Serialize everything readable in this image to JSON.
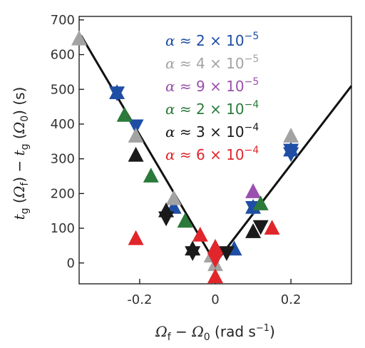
{
  "chart_data": {
    "type": "scatter",
    "xlabel": "Ω_f − Ω_0 (rad s⁻¹)",
    "ylabel": "t_g (Ω_f) − t_g (Ω_0) (s)",
    "xlim": [
      -0.36,
      0.36
    ],
    "ylim": [
      -60,
      710
    ],
    "x_ticks": [
      -0.2,
      0,
      0.2
    ],
    "x_tick_labels": [
      "-0.2",
      "0",
      "0.2"
    ],
    "y_ticks": [
      0,
      100,
      200,
      300,
      400,
      500,
      600,
      700
    ],
    "y_tick_labels": [
      "0",
      "100",
      "200",
      "300",
      "400",
      "500",
      "600",
      "700"
    ],
    "grid": false,
    "legend_position": "top-center",
    "fit_lines": [
      {
        "name": "left",
        "x": [
          -0.355,
          0.0
        ],
        "y": [
          655,
          0
        ],
        "color": "#111111"
      },
      {
        "name": "right",
        "x": [
          0.0,
          0.36
        ],
        "y": [
          0,
          510
        ],
        "color": "#111111"
      }
    ],
    "series": [
      {
        "name": "α ≈ 2 × 10⁻⁵",
        "alpha": "2",
        "exp": "−5",
        "color": "#1f4ea5",
        "points": [
          {
            "x": -0.26,
            "y": 490,
            "marker": "star"
          },
          {
            "x": -0.21,
            "y": 395,
            "marker": "down"
          },
          {
            "x": -0.11,
            "y": 160,
            "marker": "up"
          },
          {
            "x": 0.1,
            "y": 160,
            "marker": "star"
          },
          {
            "x": 0.2,
            "y": 325,
            "marker": "star"
          },
          {
            "x": 0.2,
            "y": 315,
            "marker": "down"
          },
          {
            "x": 0.05,
            "y": 40,
            "marker": "up"
          }
        ]
      },
      {
        "name": "α ≈ 4 × 10⁻⁵",
        "alpha": "4",
        "exp": "−5",
        "color": "#a3a3a3",
        "points": [
          {
            "x": -0.36,
            "y": 645,
            "marker": "up"
          },
          {
            "x": -0.21,
            "y": 365,
            "marker": "up"
          },
          {
            "x": -0.11,
            "y": 185,
            "marker": "up"
          },
          {
            "x": 0.2,
            "y": 365,
            "marker": "up"
          },
          {
            "x": 0.0,
            "y": -5,
            "marker": "up"
          },
          {
            "x": -0.01,
            "y": 20,
            "marker": "up"
          }
        ]
      },
      {
        "name": "α ≈ 9 × 10⁻⁵",
        "alpha": "9",
        "exp": "−5",
        "color": "#9b4fae",
        "points": [
          {
            "x": 0.1,
            "y": 205,
            "marker": "up"
          }
        ]
      },
      {
        "name": "α ≈ 2 × 10⁻⁴",
        "alpha": "2",
        "exp": "−4",
        "color": "#2a7a3b",
        "points": [
          {
            "x": -0.24,
            "y": 425,
            "marker": "up"
          },
          {
            "x": -0.17,
            "y": 250,
            "marker": "up"
          },
          {
            "x": -0.08,
            "y": 120,
            "marker": "up"
          },
          {
            "x": 0.12,
            "y": 170,
            "marker": "up"
          }
        ]
      },
      {
        "name": "α ≈ 3 × 10⁻⁴",
        "alpha": "3",
        "exp": "−4",
        "color": "#1a1a1a",
        "points": [
          {
            "x": -0.21,
            "y": 310,
            "marker": "up"
          },
          {
            "x": -0.13,
            "y": 150,
            "marker": "up"
          },
          {
            "x": -0.13,
            "y": 130,
            "marker": "down"
          },
          {
            "x": -0.06,
            "y": 40,
            "marker": "up"
          },
          {
            "x": -0.06,
            "y": 30,
            "marker": "down"
          },
          {
            "x": 0.03,
            "y": 30,
            "marker": "down"
          },
          {
            "x": 0.1,
            "y": 90,
            "marker": "up"
          },
          {
            "x": 0.12,
            "y": 105,
            "marker": "down"
          }
        ]
      },
      {
        "name": "α ≈ 6 × 10⁻⁴",
        "alpha": "6",
        "exp": "−4",
        "color": "#e0262b",
        "points": [
          {
            "x": -0.21,
            "y": 70,
            "marker": "up"
          },
          {
            "x": -0.04,
            "y": 80,
            "marker": "up"
          },
          {
            "x": 0.0,
            "y": 45,
            "marker": "up"
          },
          {
            "x": 0.0,
            "y": 10,
            "marker": "down"
          },
          {
            "x": 0.0,
            "y": -40,
            "marker": "up"
          },
          {
            "x": 0.15,
            "y": 100,
            "marker": "up"
          }
        ]
      }
    ]
  }
}
